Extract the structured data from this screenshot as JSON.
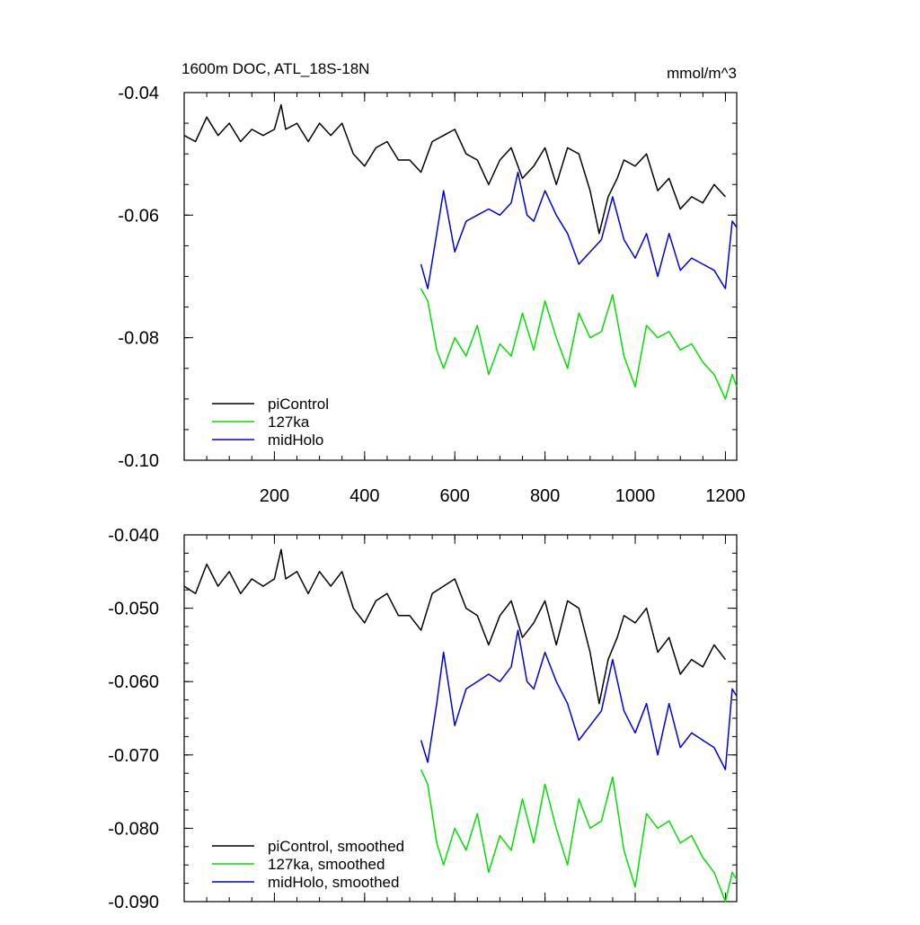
{
  "title": "1600m DOC, ATL_18S-18N",
  "units": "mmol/m^3",
  "chart_data": [
    {
      "type": "line",
      "xlim": [
        0,
        1225
      ],
      "ylim": [
        -0.1,
        -0.04
      ],
      "x_ticks": [
        200,
        400,
        600,
        800,
        1000,
        1200
      ],
      "y_ticks": [
        -0.1,
        -0.08,
        -0.06,
        -0.04
      ],
      "y_tick_labels": [
        "-0.10",
        "-0.08",
        "-0.06",
        "-0.04"
      ],
      "legend": [
        "piControl",
        "127ka",
        "midHolo"
      ],
      "series": [
        {
          "name": "piControl",
          "color": "#000000",
          "x": [
            0,
            25,
            50,
            75,
            100,
            125,
            150,
            175,
            200,
            215,
            225,
            250,
            275,
            300,
            325,
            350,
            375,
            400,
            425,
            450,
            475,
            500,
            525,
            550,
            575,
            600,
            625,
            650,
            675,
            700,
            725,
            750,
            775,
            800,
            825,
            850,
            875,
            900,
            920,
            940,
            960,
            975,
            1000,
            1025,
            1050,
            1075,
            1100,
            1125,
            1150,
            1175,
            1200
          ],
          "values": [
            -0.047,
            -0.048,
            -0.044,
            -0.047,
            -0.045,
            -0.048,
            -0.046,
            -0.047,
            -0.046,
            -0.042,
            -0.046,
            -0.045,
            -0.048,
            -0.045,
            -0.047,
            -0.045,
            -0.05,
            -0.052,
            -0.049,
            -0.048,
            -0.051,
            -0.051,
            -0.053,
            -0.048,
            -0.047,
            -0.046,
            -0.05,
            -0.051,
            -0.055,
            -0.051,
            -0.049,
            -0.054,
            -0.052,
            -0.049,
            -0.055,
            -0.049,
            -0.05,
            -0.056,
            -0.063,
            -0.057,
            -0.054,
            -0.051,
            -0.052,
            -0.05,
            -0.056,
            -0.054,
            -0.059,
            -0.057,
            -0.058,
            -0.055,
            -0.057
          ]
        },
        {
          "name": "127ka",
          "color": "#00e000",
          "x": [
            525,
            540,
            560,
            575,
            600,
            625,
            650,
            675,
            700,
            725,
            750,
            775,
            800,
            825,
            850,
            875,
            900,
            925,
            950,
            975,
            1000,
            1025,
            1050,
            1075,
            1100,
            1125,
            1150,
            1175,
            1200,
            1215,
            1225
          ],
          "values": [
            -0.072,
            -0.074,
            -0.082,
            -0.085,
            -0.08,
            -0.083,
            -0.078,
            -0.086,
            -0.081,
            -0.083,
            -0.076,
            -0.082,
            -0.074,
            -0.08,
            -0.085,
            -0.076,
            -0.08,
            -0.079,
            -0.073,
            -0.083,
            -0.088,
            -0.078,
            -0.08,
            -0.079,
            -0.082,
            -0.081,
            -0.084,
            -0.086,
            -0.09,
            -0.086,
            -0.088
          ]
        },
        {
          "name": "midHolo",
          "color": "#0000e0",
          "x": [
            525,
            540,
            560,
            575,
            600,
            625,
            650,
            675,
            700,
            725,
            740,
            760,
            775,
            800,
            825,
            850,
            875,
            900,
            925,
            950,
            975,
            1000,
            1025,
            1050,
            1075,
            1100,
            1125,
            1150,
            1175,
            1200,
            1215,
            1225
          ],
          "values": [
            -0.068,
            -0.072,
            -0.063,
            -0.056,
            -0.066,
            -0.061,
            -0.06,
            -0.059,
            -0.06,
            -0.058,
            -0.053,
            -0.06,
            -0.061,
            -0.056,
            -0.06,
            -0.063,
            -0.068,
            -0.066,
            -0.064,
            -0.057,
            -0.064,
            -0.067,
            -0.063,
            -0.07,
            -0.063,
            -0.069,
            -0.067,
            -0.068,
            -0.069,
            -0.072,
            -0.061,
            -0.062
          ]
        }
      ]
    },
    {
      "type": "line",
      "xlim": [
        0,
        1225
      ],
      "ylim": [
        -0.09,
        -0.04
      ],
      "x_ticks": [
        200,
        400,
        600,
        800,
        1000,
        1200
      ],
      "y_ticks": [
        -0.09,
        -0.08,
        -0.07,
        -0.06,
        -0.05,
        -0.04
      ],
      "y_tick_labels": [
        "-0.090",
        "-0.080",
        "-0.070",
        "-0.060",
        "-0.050",
        "-0.040"
      ],
      "legend": [
        "piControl, smoothed",
        "127ka, smoothed",
        "midHolo, smoothed"
      ],
      "series": [
        {
          "name": "piControl, smoothed",
          "color": "#000000",
          "x": [
            0,
            25,
            50,
            75,
            100,
            125,
            150,
            175,
            200,
            215,
            225,
            250,
            275,
            300,
            325,
            350,
            375,
            400,
            425,
            450,
            475,
            500,
            525,
            550,
            575,
            600,
            625,
            650,
            675,
            700,
            725,
            750,
            775,
            800,
            825,
            850,
            875,
            900,
            920,
            940,
            960,
            975,
            1000,
            1025,
            1050,
            1075,
            1100,
            1125,
            1150,
            1175,
            1200
          ],
          "values": [
            -0.047,
            -0.048,
            -0.044,
            -0.047,
            -0.045,
            -0.048,
            -0.046,
            -0.047,
            -0.046,
            -0.042,
            -0.046,
            -0.045,
            -0.048,
            -0.045,
            -0.047,
            -0.045,
            -0.05,
            -0.052,
            -0.049,
            -0.048,
            -0.051,
            -0.051,
            -0.053,
            -0.048,
            -0.047,
            -0.046,
            -0.05,
            -0.051,
            -0.055,
            -0.051,
            -0.049,
            -0.054,
            -0.052,
            -0.049,
            -0.055,
            -0.049,
            -0.05,
            -0.056,
            -0.063,
            -0.057,
            -0.054,
            -0.051,
            -0.052,
            -0.05,
            -0.056,
            -0.054,
            -0.059,
            -0.057,
            -0.058,
            -0.055,
            -0.057
          ]
        },
        {
          "name": "127ka, smoothed",
          "color": "#00e000",
          "x": [
            525,
            540,
            560,
            575,
            600,
            625,
            650,
            675,
            700,
            725,
            750,
            775,
            800,
            825,
            850,
            875,
            900,
            925,
            950,
            975,
            1000,
            1025,
            1050,
            1075,
            1100,
            1125,
            1150,
            1175,
            1200,
            1215,
            1225
          ],
          "values": [
            -0.072,
            -0.074,
            -0.082,
            -0.085,
            -0.08,
            -0.083,
            -0.078,
            -0.086,
            -0.081,
            -0.083,
            -0.076,
            -0.082,
            -0.074,
            -0.08,
            -0.085,
            -0.076,
            -0.08,
            -0.079,
            -0.073,
            -0.083,
            -0.088,
            -0.078,
            -0.08,
            -0.079,
            -0.082,
            -0.081,
            -0.084,
            -0.086,
            -0.09,
            -0.086,
            -0.087
          ]
        },
        {
          "name": "midHolo, smoothed",
          "color": "#0000e0",
          "x": [
            525,
            540,
            560,
            575,
            600,
            625,
            650,
            675,
            700,
            725,
            740,
            760,
            775,
            800,
            825,
            850,
            875,
            900,
            925,
            950,
            975,
            1000,
            1025,
            1050,
            1075,
            1100,
            1125,
            1150,
            1175,
            1200,
            1215,
            1225
          ],
          "values": [
            -0.068,
            -0.071,
            -0.063,
            -0.056,
            -0.066,
            -0.061,
            -0.06,
            -0.059,
            -0.06,
            -0.058,
            -0.053,
            -0.06,
            -0.061,
            -0.056,
            -0.06,
            -0.063,
            -0.068,
            -0.066,
            -0.064,
            -0.057,
            -0.064,
            -0.067,
            -0.063,
            -0.07,
            -0.063,
            -0.069,
            -0.067,
            -0.068,
            -0.069,
            -0.072,
            -0.061,
            -0.062
          ]
        }
      ]
    }
  ]
}
